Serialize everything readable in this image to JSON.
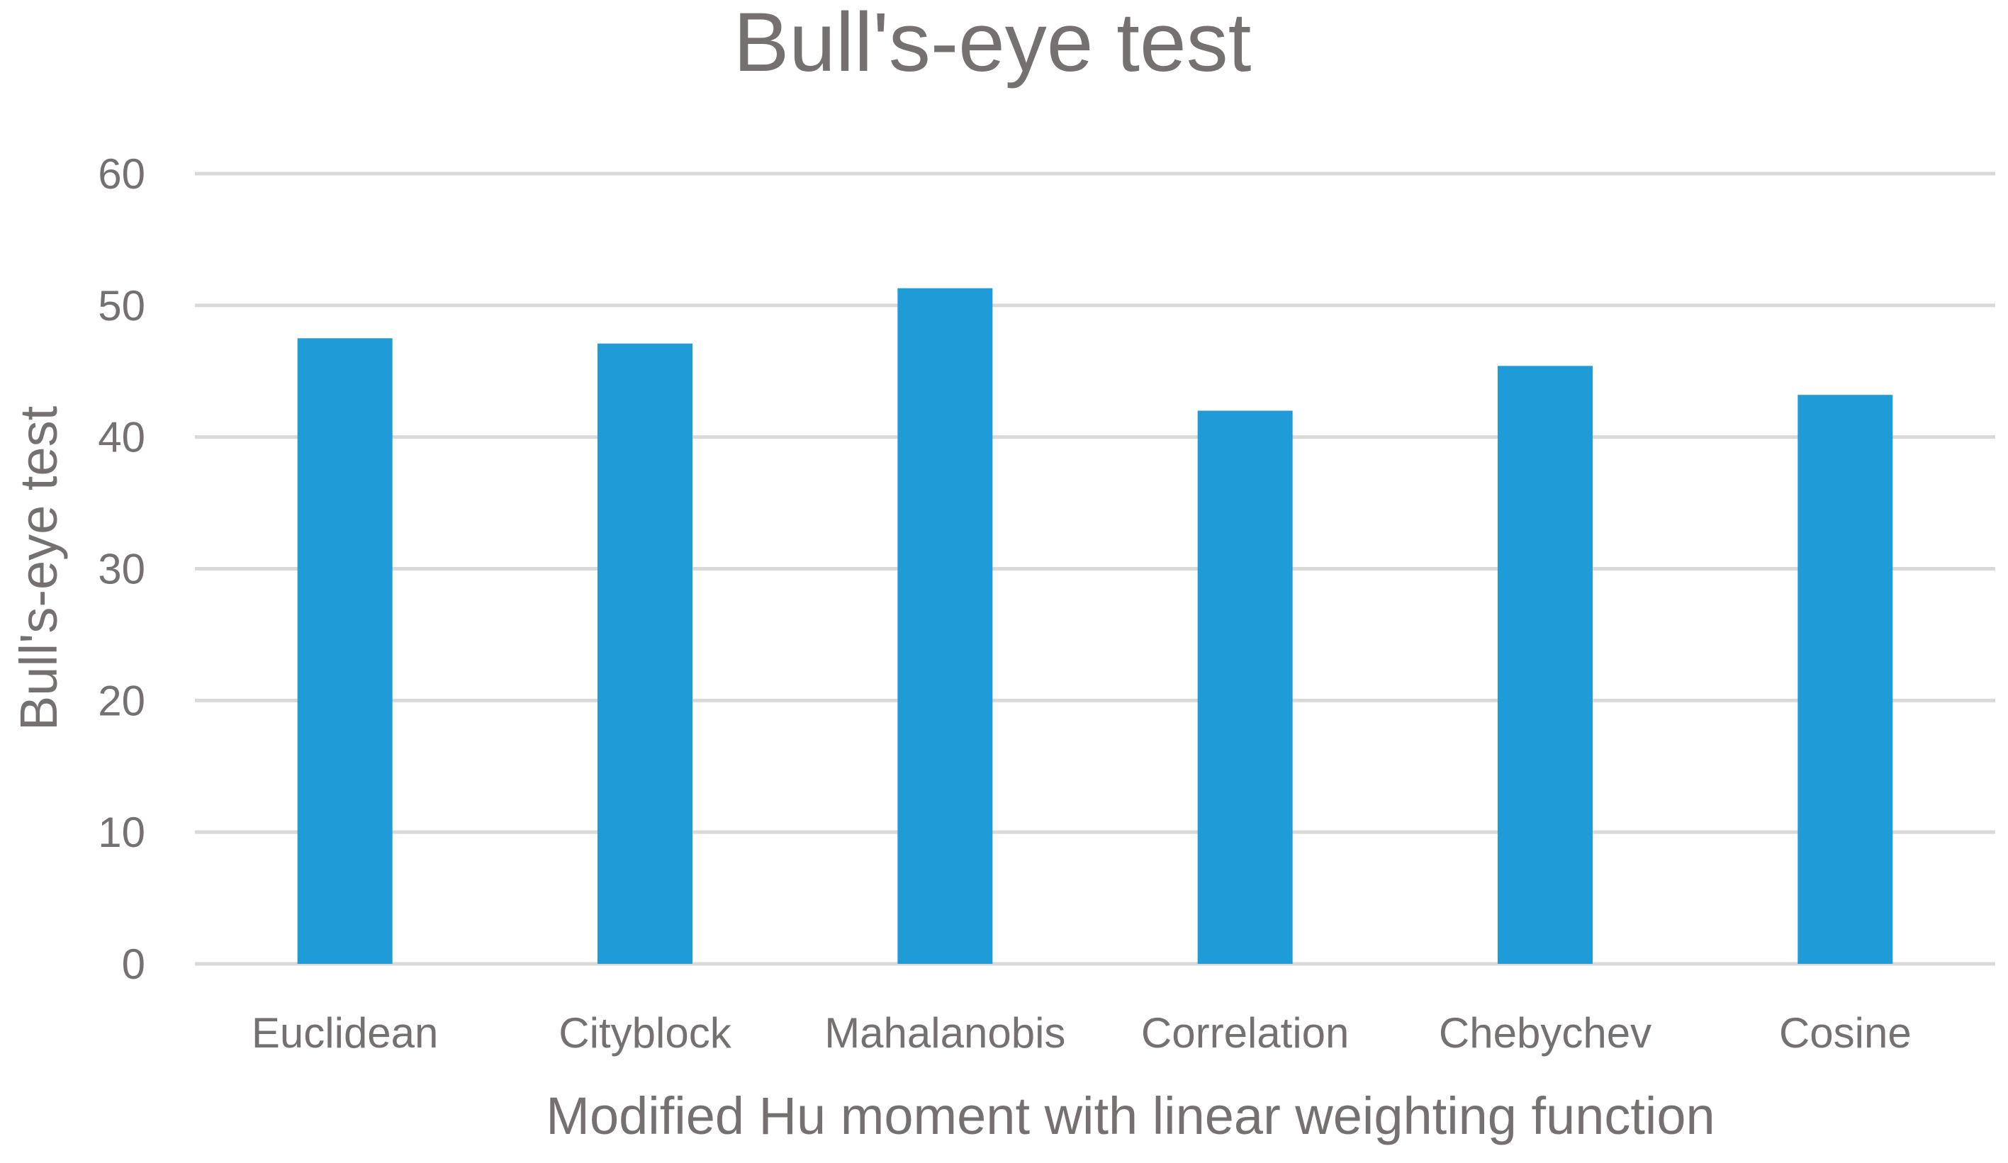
{
  "chart_data": {
    "type": "bar",
    "title": "Bull's-eye test",
    "xlabel": "Modified Hu moment with linear weighting function",
    "ylabel": "Bull's-eye test",
    "categories": [
      "Euclidean",
      "Cityblock",
      "Mahalanobis",
      "Correlation",
      "Chebychev",
      "Cosine"
    ],
    "series": [
      {
        "values": [
          47.5,
          47.1,
          51.3,
          42.0,
          45.4,
          43.2
        ],
        "color": "#1f9cd8"
      }
    ],
    "ylim": [
      0,
      60
    ],
    "yticks": [
      0,
      10,
      20,
      30,
      40,
      50,
      60
    ],
    "grid": true,
    "legend": "none",
    "colors": {
      "bar": "#1f9cd8",
      "text": "#767171",
      "grid": "#d9d9d9"
    }
  }
}
